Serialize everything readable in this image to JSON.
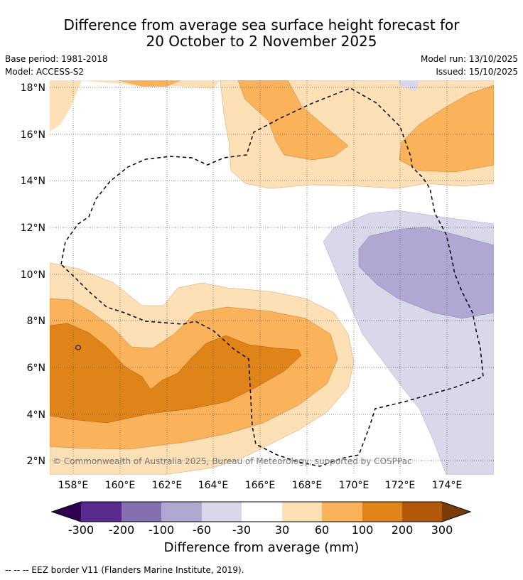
{
  "title_line1": "Difference from average sea surface height forecast for",
  "title_line2": "20 October to 2 November 2025",
  "meta": {
    "base_period": "Base period: 1981-2018",
    "model": "Model: ACCESS-S2",
    "model_run": "Model run: 13/10/2025",
    "issued": "Issued: 15/10/2025"
  },
  "copyright": "© Commonwealth of Australia 2025, Bureau of Meteorology; supported by COSPPac",
  "axes": {
    "lat_ticks": [
      "18°N",
      "16°N",
      "14°N",
      "12°N",
      "10°N",
      "8°N",
      "6°N",
      "4°N",
      "2°N"
    ],
    "lon_ticks": [
      "158°E",
      "160°E",
      "162°E",
      "164°E",
      "166°E",
      "168°E",
      "170°E",
      "172°E",
      "174°E"
    ]
  },
  "colorbar": {
    "title": "Difference from average (mm)",
    "tick_labels": [
      "-300",
      "-200",
      "-100",
      "-60",
      "-30",
      "30",
      "60",
      "100",
      "200",
      "300"
    ],
    "colors": {
      "extend_low": "#2d0050",
      "c1": "#5b2a8e",
      "c2": "#8270b0",
      "c3": "#b0a8d2",
      "c4": "#d8d8ea",
      "c5": "#ffffff",
      "c6": "#fde0b6",
      "c7": "#fab35a",
      "c8": "#e08419",
      "c9": "#b35808",
      "extend_high": "#7a3b0a"
    }
  },
  "footnote": "-- -- -- EEZ border V11 (Flanders Marine Institute, 2019)."
}
